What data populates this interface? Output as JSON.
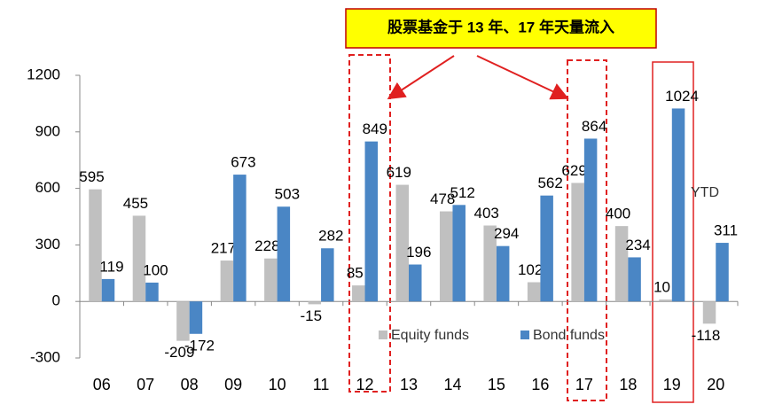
{
  "chart_data": {
    "type": "bar",
    "callout": "股票基金于 13 年、17 年天量流入",
    "note": "YTD",
    "categories": [
      "06",
      "07",
      "08",
      "09",
      "10",
      "11",
      "12",
      "13",
      "14",
      "15",
      "16",
      "17",
      "18",
      "19",
      "20"
    ],
    "series": [
      {
        "name": "Equity funds",
        "color": "#c0c0c0",
        "values": [
          595,
          455,
          -209,
          217,
          228,
          -15,
          85,
          619,
          478,
          403,
          102,
          629,
          400,
          10,
          -118
        ]
      },
      {
        "name": "Bond funds",
        "color": "#4a86c5",
        "values": [
          119,
          100,
          -172,
          673,
          503,
          282,
          849,
          196,
          512,
          294,
          562,
          864,
          234,
          1024,
          311
        ]
      }
    ],
    "ylim": [
      -300,
      1200
    ],
    "yticks": [
      -300,
      0,
      300,
      600,
      900,
      1200
    ],
    "grid": false
  }
}
